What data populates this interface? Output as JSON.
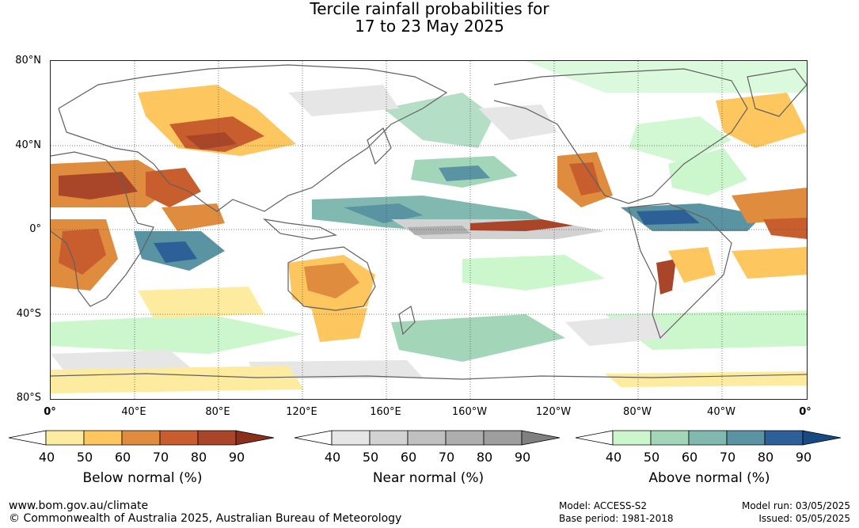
{
  "title_line1": "Tercile rainfall probabilities for",
  "title_line2": "17 to 23 May 2025",
  "lat_labels": [
    "80°N",
    "40°N",
    "0°",
    "40°S",
    "80°S"
  ],
  "lon_labels": [
    "0°",
    "40°E",
    "80°E",
    "120°E",
    "160°E",
    "160°W",
    "120°W",
    "80°W",
    "40°W",
    "0°"
  ],
  "colorbars": [
    {
      "title": "Below normal (%)",
      "ticks": [
        "40",
        "50",
        "60",
        "70",
        "80",
        "90"
      ],
      "colors": [
        "#ffffff",
        "#fdeca0",
        "#fdc65e",
        "#df8c3f",
        "#c85e2e",
        "#a9462a",
        "#8b2e1a"
      ]
    },
    {
      "title": "Near normal (%)",
      "ticks": [
        "40",
        "50",
        "60",
        "70",
        "80",
        "90"
      ],
      "colors": [
        "#ffffff",
        "#e6e6e6",
        "#d2d2d2",
        "#c0c0c0",
        "#aeaeae",
        "#9e9e9e",
        "#808080"
      ]
    },
    {
      "title": "Above normal (%)",
      "ticks": [
        "40",
        "50",
        "60",
        "70",
        "80",
        "90"
      ],
      "colors": [
        "#ffffff",
        "#ccf7cd",
        "#a3d6b8",
        "#81b8b0",
        "#5a93a1",
        "#2d6096",
        "#164a80"
      ]
    }
  ],
  "footer": {
    "website": "www.bom.gov.au/climate",
    "copyright": "© Commonwealth of Australia 2025, Australian Bureau of Meteorology",
    "model": "Model: ACCESS-S2",
    "base_period": "Base period: 1981-2018",
    "model_run": "Model run: 03/05/2025",
    "issued": "Issued: 05/05/2025"
  },
  "map_colors": {
    "coast": "#606060",
    "grid": "#555555"
  }
}
